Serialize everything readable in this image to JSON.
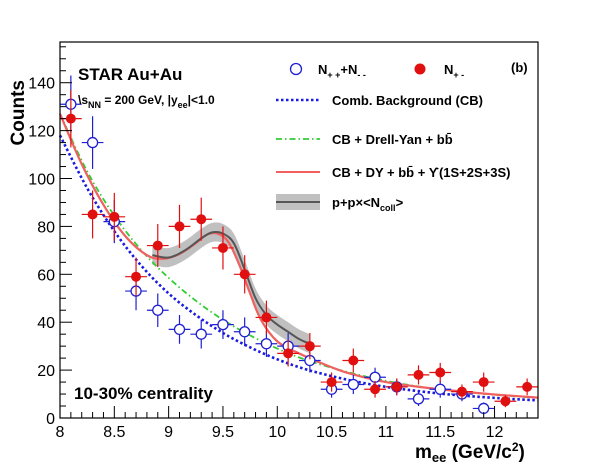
{
  "chart_data": {
    "type": "scatter",
    "xlabel": "m",
    "xlabel_sub": "ee",
    "xlabel_units": " (GeV/c",
    "xlabel_units_sup": "2",
    "xlabel_units_close": ")",
    "ylabel": "Counts",
    "xlim": [
      8.0,
      12.4
    ],
    "ylim": [
      0,
      157
    ],
    "x_ticks": [
      8,
      8.5,
      9,
      9.5,
      10,
      10.5,
      11,
      11.5,
      12
    ],
    "x_tick_labels": [
      "8",
      "8.5",
      "9",
      "9.5",
      "10",
      "10.5",
      "11",
      "11.5",
      "12"
    ],
    "y_ticks": [
      0,
      20,
      40,
      60,
      80,
      100,
      120,
      140
    ],
    "y_tick_labels": [
      "0",
      "20",
      "40",
      "60",
      "80",
      "100",
      "120",
      "140"
    ],
    "panel_label": "(b)",
    "annotations": {
      "experiment": "STAR Au+Au",
      "energy_prefix": "\\s",
      "energy_sub": "NN",
      "energy_mid": " = 200 GeV, |y",
      "energy_sub2": "ee",
      "energy_suffix": "|<1.0",
      "centrality": "10-30% centrality"
    },
    "legend": {
      "like_sign": "N",
      "like_sign_sub1": "+ +",
      "like_sign_mid": "+N",
      "like_sign_sub2": "- -",
      "unlike_sign": "N",
      "unlike_sign_sub": "+ -",
      "cb": "Comb. Background (CB)",
      "dy": "CB + Drell-Yan + bb̄",
      "total": "CB + DY + bb̄ + ϒ(1S+2S+3S)",
      "pp": "p+p×<N",
      "pp_sub": "coll",
      "pp_suffix": ">"
    },
    "colors": {
      "like_sign": "#2020d0",
      "unlike_sign": "#e01010",
      "cb": "#1a1ae0",
      "dy": "#33cc33",
      "total": "#f06060",
      "pp": "#555555",
      "pp_band": "#c0c0c0"
    },
    "series": [
      {
        "name": "N++ + N--",
        "marker": "open-circle",
        "points": [
          {
            "x": 8.1,
            "y": 131,
            "yerr": 12
          },
          {
            "x": 8.3,
            "y": 115,
            "yerr": 11
          },
          {
            "x": 8.5,
            "y": 82,
            "yerr": 9
          },
          {
            "x": 8.7,
            "y": 53,
            "yerr": 8
          },
          {
            "x": 8.9,
            "y": 45,
            "yerr": 7
          },
          {
            "x": 9.1,
            "y": 37,
            "yerr": 6
          },
          {
            "x": 9.3,
            "y": 35,
            "yerr": 6
          },
          {
            "x": 9.5,
            "y": 39,
            "yerr": 6
          },
          {
            "x": 9.7,
            "y": 36,
            "yerr": 6
          },
          {
            "x": 9.9,
            "y": 31,
            "yerr": 5.5
          },
          {
            "x": 10.1,
            "y": 30,
            "yerr": 5.5
          },
          {
            "x": 10.3,
            "y": 24,
            "yerr": 5
          },
          {
            "x": 10.5,
            "y": 12,
            "yerr": 3.5
          },
          {
            "x": 10.7,
            "y": 14,
            "yerr": 4
          },
          {
            "x": 10.9,
            "y": 17,
            "yerr": 4
          },
          {
            "x": 11.1,
            "y": 13,
            "yerr": 3.5
          },
          {
            "x": 11.3,
            "y": 8,
            "yerr": 3
          },
          {
            "x": 11.5,
            "y": 12,
            "yerr": 3.5
          },
          {
            "x": 11.7,
            "y": 10,
            "yerr": 3
          },
          {
            "x": 11.9,
            "y": 4,
            "yerr": 2.5
          }
        ]
      },
      {
        "name": "N+-",
        "marker": "filled-circle",
        "points": [
          {
            "x": 8.1,
            "y": 125,
            "yerr": 12
          },
          {
            "x": 8.3,
            "y": 85,
            "yerr": 10
          },
          {
            "x": 8.5,
            "y": 84,
            "yerr": 10
          },
          {
            "x": 8.7,
            "y": 59,
            "yerr": 8
          },
          {
            "x": 8.9,
            "y": 72,
            "yerr": 9
          },
          {
            "x": 9.1,
            "y": 80,
            "yerr": 9
          },
          {
            "x": 9.3,
            "y": 83,
            "yerr": 9
          },
          {
            "x": 9.5,
            "y": 71,
            "yerr": 9
          },
          {
            "x": 9.7,
            "y": 60,
            "yerr": 8
          },
          {
            "x": 9.9,
            "y": 42,
            "yerr": 7
          },
          {
            "x": 10.1,
            "y": 27,
            "yerr": 5.5
          },
          {
            "x": 10.3,
            "y": 30,
            "yerr": 5.5
          },
          {
            "x": 10.5,
            "y": 15,
            "yerr": 4
          },
          {
            "x": 10.7,
            "y": 24,
            "yerr": 5
          },
          {
            "x": 10.9,
            "y": 12,
            "yerr": 3.5
          },
          {
            "x": 11.1,
            "y": 13,
            "yerr": 3.5
          },
          {
            "x": 11.3,
            "y": 18,
            "yerr": 4
          },
          {
            "x": 11.5,
            "y": 19,
            "yerr": 4
          },
          {
            "x": 11.7,
            "y": 11,
            "yerr": 3
          },
          {
            "x": 11.9,
            "y": 15,
            "yerr": 4
          },
          {
            "x": 12.1,
            "y": 7,
            "yerr": 2.5
          },
          {
            "x": 12.3,
            "y": 13,
            "yerr": 3.5
          }
        ]
      }
    ],
    "curves": [
      {
        "name": "Comb. Background (CB)",
        "style": "dotted",
        "x": [
          8.0,
          8.25,
          8.5,
          8.75,
          9.0,
          9.25,
          9.5,
          9.75,
          10.0,
          10.25,
          10.5,
          10.75,
          11.0,
          11.25,
          11.5,
          11.75,
          12.0,
          12.25,
          12.4
        ],
        "y": [
          118,
          96,
          78,
          63.5,
          52,
          43,
          35.5,
          29.5,
          24.5,
          20.5,
          17.5,
          15,
          13,
          11.5,
          10.2,
          9.2,
          8.4,
          7.7,
          7.4
        ]
      },
      {
        "name": "CB + Drell-Yan + bb̄",
        "style": "dash-dot",
        "x": [
          8.0,
          8.25,
          8.5,
          8.75,
          9.0,
          9.25,
          9.5,
          9.75,
          10.0,
          10.25,
          10.5,
          10.75,
          11.0,
          11.25,
          11.5,
          11.75,
          12.0,
          12.25,
          12.4
        ],
        "y": [
          127,
          103,
          84.5,
          70,
          58.5,
          49,
          41,
          34.5,
          29,
          24.5,
          21,
          18,
          15.5,
          13.5,
          12,
          10.8,
          9.7,
          8.9,
          8.5
        ]
      },
      {
        "name": "CB + DY + bb̄ + ϒ(1S+2S+3S)",
        "style": "solid",
        "x": [
          8.0,
          8.2,
          8.4,
          8.6,
          8.8,
          8.95,
          9.1,
          9.25,
          9.35,
          9.45,
          9.55,
          9.65,
          9.75,
          9.85,
          10.0,
          10.2,
          10.4,
          10.6,
          10.8,
          11.0,
          11.25,
          11.5,
          11.75,
          12.0,
          12.25,
          12.4
        ],
        "y": [
          127,
          106,
          89,
          76,
          68,
          66.5,
          68.5,
          73,
          76.5,
          77,
          73.5,
          64,
          52,
          41,
          32,
          27,
          23,
          19.5,
          17,
          15,
          13.3,
          12,
          10.8,
          9.8,
          9,
          8.5
        ]
      },
      {
        "name": "p+p×<Ncoll>",
        "style": "band",
        "x": [
          8.85,
          9.0,
          9.15,
          9.3,
          9.4,
          9.5,
          9.6,
          9.7,
          9.8,
          9.9,
          10.0,
          10.1,
          10.2,
          10.3
        ],
        "y": [
          68,
          67,
          70,
          75,
          77.5,
          77,
          73,
          62,
          50,
          43,
          39,
          36,
          33,
          31
        ],
        "band": 4
      }
    ]
  }
}
